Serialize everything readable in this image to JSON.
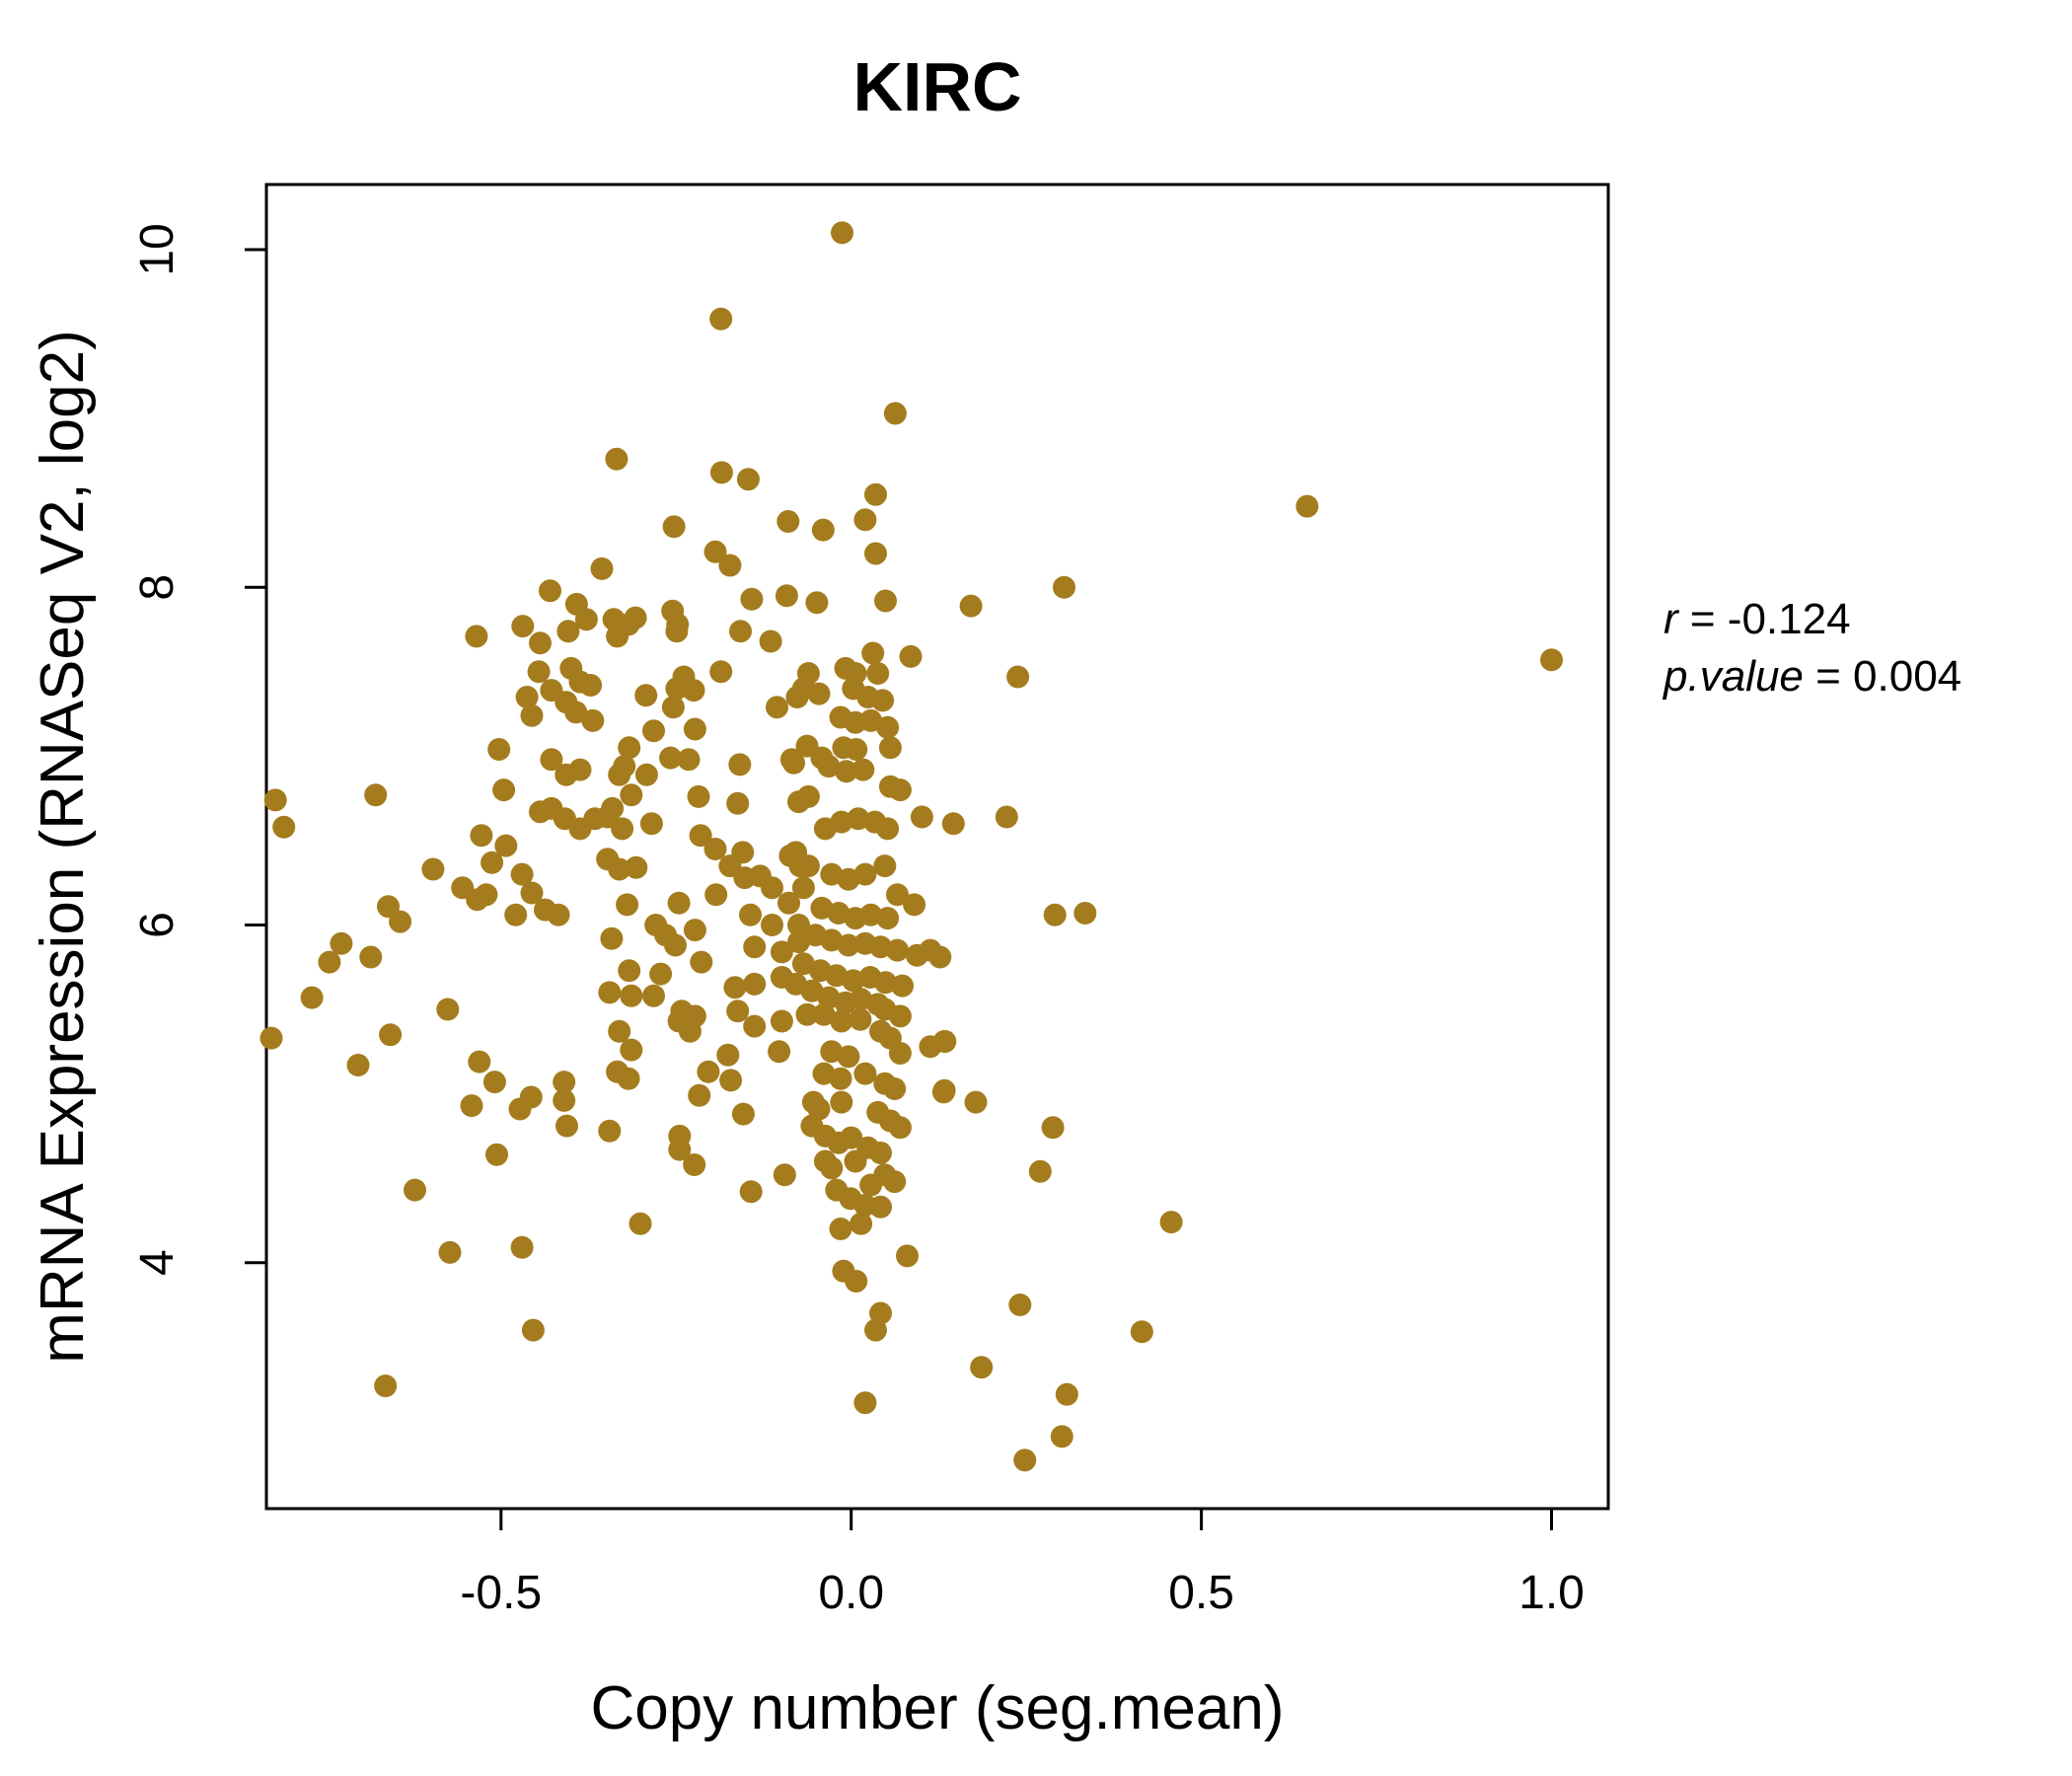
{
  "title": "KIRC",
  "annotation": {
    "line1_var": "r",
    "line1_rest": " = -0.124",
    "line2_var": "p.value",
    "line2_rest": " = 0.004"
  },
  "colors": {
    "point_gold": "#A47C1E",
    "title_gold": "#A47C1E",
    "axis_black": "#000000",
    "background": "#FFFFFF"
  },
  "chart_data": {
    "type": "scatter",
    "title": "KIRC",
    "xlabel": "Copy number (seg.mean)",
    "ylabel": "mRNA Expression (RNASeq V2, log2)",
    "xlim": [
      -0.835,
      1.081
    ],
    "ylim": [
      2.543,
      10.386
    ],
    "grid": false,
    "legend": "none",
    "correlation_r": -0.124,
    "p_value": 0.004,
    "x_ticks": [
      {
        "v": -0.5,
        "label": "-0.5"
      },
      {
        "v": 0.0,
        "label": "0.0"
      },
      {
        "v": 0.5,
        "label": "0.5"
      },
      {
        "v": 1.0,
        "label": "1.0"
      }
    ],
    "y_ticks": [
      {
        "v": 4,
        "label": "4"
      },
      {
        "v": 6,
        "label": "6"
      },
      {
        "v": 8,
        "label": "8"
      },
      {
        "v": 10,
        "label": "10"
      }
    ],
    "points": [
      [
        -0.013,
        10.1
      ],
      [
        -0.186,
        9.59
      ],
      [
        0.063,
        9.03
      ],
      [
        -0.335,
        8.76
      ],
      [
        -0.185,
        8.68
      ],
      [
        -0.147,
        8.64
      ],
      [
        -0.253,
        8.36
      ],
      [
        -0.09,
        8.39
      ],
      [
        -0.04,
        8.34
      ],
      [
        0.02,
        8.4
      ],
      [
        0.035,
        8.55
      ],
      [
        -0.194,
        8.21
      ],
      [
        -0.173,
        8.13
      ],
      [
        -0.356,
        8.11
      ],
      [
        -0.308,
        7.82
      ],
      [
        -0.142,
        7.93
      ],
      [
        -0.092,
        7.95
      ],
      [
        0.035,
        8.2
      ],
      [
        -0.43,
        7.98
      ],
      [
        -0.392,
        7.9
      ],
      [
        -0.378,
        7.81
      ],
      [
        -0.339,
        7.81
      ],
      [
        -0.318,
        7.78
      ],
      [
        -0.255,
        7.86
      ],
      [
        -0.248,
        7.78
      ],
      [
        -0.469,
        7.77
      ],
      [
        0.651,
        8.48
      ],
      [
        0.304,
        8.0
      ],
      [
        0.171,
        7.89
      ],
      [
        0.238,
        7.47
      ],
      [
        1.0,
        7.57
      ],
      [
        0.222,
        6.64
      ],
      [
        0.291,
        6.06
      ],
      [
        0.334,
        6.07
      ],
      [
        0.127,
        5.81
      ],
      [
        0.133,
        5.31
      ],
      [
        -0.049,
        7.91
      ],
      [
        0.049,
        7.92
      ],
      [
        0.031,
        7.61
      ],
      [
        0.085,
        7.59
      ],
      [
        -0.008,
        7.52
      ],
      [
        0.006,
        7.49
      ],
      [
        0.038,
        7.49
      ],
      [
        -0.061,
        7.49
      ],
      [
        -0.068,
        7.4
      ],
      [
        -0.046,
        7.37
      ],
      [
        -0.077,
        7.35
      ],
      [
        0.003,
        7.4
      ],
      [
        0.024,
        7.35
      ],
      [
        0.045,
        7.33
      ],
      [
        -0.015,
        7.23
      ],
      [
        0.006,
        7.2
      ],
      [
        0.028,
        7.21
      ],
      [
        0.052,
        7.17
      ],
      [
        -0.063,
        7.06
      ],
      [
        -0.042,
        6.99
      ],
      [
        -0.082,
        6.96
      ],
      [
        -0.011,
        7.05
      ],
      [
        0.007,
        7.04
      ],
      [
        0.056,
        7.05
      ],
      [
        -0.032,
        6.94
      ],
      [
        -0.007,
        6.91
      ],
      [
        0.017,
        6.92
      ],
      [
        0.056,
        6.82
      ],
      [
        0.07,
        6.8
      ],
      [
        0.101,
        6.64
      ],
      [
        0.146,
        6.6
      ],
      [
        -0.061,
        6.76
      ],
      [
        -0.075,
        6.73
      ],
      [
        -0.037,
        6.57
      ],
      [
        -0.014,
        6.61
      ],
      [
        0.01,
        6.63
      ],
      [
        0.034,
        6.61
      ],
      [
        0.052,
        6.57
      ],
      [
        -0.079,
        6.43
      ],
      [
        -0.061,
        6.35
      ],
      [
        -0.028,
        6.3
      ],
      [
        -0.004,
        6.27
      ],
      [
        0.02,
        6.3
      ],
      [
        0.048,
        6.35
      ],
      [
        0.066,
        6.18
      ],
      [
        0.09,
        6.12
      ],
      [
        -0.068,
        6.22
      ],
      [
        -0.042,
        6.1
      ],
      [
        -0.018,
        6.07
      ],
      [
        0.006,
        6.04
      ],
      [
        0.028,
        6.06
      ],
      [
        0.052,
        6.04
      ],
      [
        -0.075,
        6.0
      ],
      [
        -0.051,
        5.94
      ],
      [
        -0.028,
        5.91
      ],
      [
        -0.004,
        5.88
      ],
      [
        0.02,
        5.89
      ],
      [
        0.042,
        5.87
      ],
      [
        0.066,
        5.85
      ],
      [
        0.094,
        5.82
      ],
      [
        0.113,
        5.85
      ],
      [
        -0.068,
        5.77
      ],
      [
        -0.044,
        5.73
      ],
      [
        -0.021,
        5.7
      ],
      [
        0.003,
        5.67
      ],
      [
        0.027,
        5.69
      ],
      [
        0.049,
        5.66
      ],
      [
        0.073,
        5.64
      ],
      [
        -0.079,
        5.65
      ],
      [
        -0.056,
        5.61
      ],
      [
        -0.032,
        5.57
      ],
      [
        -0.008,
        5.54
      ],
      [
        0.014,
        5.56
      ],
      [
        0.038,
        5.53
      ],
      [
        -0.063,
        5.47
      ],
      [
        -0.039,
        5.47
      ],
      [
        -0.014,
        5.43
      ],
      [
        0.013,
        5.44
      ],
      [
        0.048,
        5.5
      ],
      [
        0.07,
        5.46
      ],
      [
        0.042,
        5.37
      ],
      [
        0.056,
        5.33
      ],
      [
        -0.028,
        5.25
      ],
      [
        -0.004,
        5.22
      ],
      [
        0.07,
        5.24
      ],
      [
        0.113,
        5.28
      ],
      [
        0.134,
        5.31
      ],
      [
        -0.039,
        5.12
      ],
      [
        -0.015,
        5.09
      ],
      [
        0.02,
        5.12
      ],
      [
        0.048,
        5.06
      ],
      [
        0.062,
        5.03
      ],
      [
        0.132,
        5.01
      ],
      [
        -0.054,
        4.95
      ],
      [
        -0.046,
        4.91
      ],
      [
        -0.014,
        4.95
      ],
      [
        0.038,
        4.89
      ],
      [
        0.056,
        4.84
      ],
      [
        0.07,
        4.8
      ],
      [
        -0.056,
        4.81
      ],
      [
        -0.037,
        4.75
      ],
      [
        -0.018,
        4.71
      ],
      [
        0.0,
        4.74
      ],
      [
        0.024,
        4.68
      ],
      [
        0.042,
        4.65
      ],
      [
        -0.037,
        4.6
      ],
      [
        -0.028,
        4.56
      ],
      [
        0.006,
        4.6
      ],
      [
        0.028,
        4.46
      ],
      [
        0.048,
        4.52
      ],
      [
        0.062,
        4.48
      ],
      [
        -0.021,
        4.43
      ],
      [
        -0.001,
        4.38
      ],
      [
        0.02,
        4.34
      ],
      [
        0.042,
        4.33
      ],
      [
        -0.015,
        4.2
      ],
      [
        0.014,
        4.23
      ],
      [
        0.08,
        4.04
      ],
      [
        -0.011,
        3.95
      ],
      [
        0.007,
        3.89
      ],
      [
        0.042,
        3.7
      ],
      [
        0.035,
        3.6
      ],
      [
        -0.535,
        7.71
      ],
      [
        -0.404,
        7.74
      ],
      [
        -0.444,
        7.67
      ],
      [
        -0.446,
        7.5
      ],
      [
        -0.4,
        7.52
      ],
      [
        -0.463,
        7.35
      ],
      [
        -0.428,
        7.39
      ],
      [
        -0.407,
        7.32
      ],
      [
        -0.387,
        7.44
      ],
      [
        -0.372,
        7.42
      ],
      [
        -0.456,
        7.24
      ],
      [
        -0.393,
        7.26
      ],
      [
        -0.369,
        7.21
      ],
      [
        -0.503,
        7.04
      ],
      [
        -0.496,
        6.8
      ],
      [
        -0.679,
        6.77
      ],
      [
        -0.428,
        6.98
      ],
      [
        -0.407,
        6.89
      ],
      [
        -0.387,
        6.92
      ],
      [
        -0.444,
        6.67
      ],
      [
        -0.428,
        6.69
      ],
      [
        -0.409,
        6.63
      ],
      [
        -0.387,
        6.57
      ],
      [
        -0.366,
        6.63
      ],
      [
        -0.528,
        6.53
      ],
      [
        -0.493,
        6.47
      ],
      [
        -0.513,
        6.37
      ],
      [
        -0.597,
        6.33
      ],
      [
        -0.555,
        6.22
      ],
      [
        -0.521,
        6.18
      ],
      [
        -0.534,
        6.15
      ],
      [
        -0.47,
        6.3
      ],
      [
        -0.456,
        6.19
      ],
      [
        -0.437,
        6.09
      ],
      [
        -0.418,
        6.06
      ],
      [
        -0.479,
        6.06
      ],
      [
        -0.661,
        6.11
      ],
      [
        -0.644,
        6.02
      ],
      [
        -0.728,
        5.89
      ],
      [
        -0.745,
        5.78
      ],
      [
        -0.686,
        5.81
      ],
      [
        -0.77,
        5.57
      ],
      [
        -0.576,
        5.5
      ],
      [
        -0.658,
        5.35
      ],
      [
        -0.704,
        5.17
      ],
      [
        -0.531,
        5.19
      ],
      [
        -0.334,
        7.71
      ],
      [
        -0.249,
        7.74
      ],
      [
        -0.158,
        7.74
      ],
      [
        -0.115,
        7.68
      ],
      [
        -0.186,
        7.5
      ],
      [
        -0.239,
        7.47
      ],
      [
        -0.249,
        7.4
      ],
      [
        -0.225,
        7.39
      ],
      [
        -0.293,
        7.36
      ],
      [
        -0.254,
        7.29
      ],
      [
        -0.282,
        7.15
      ],
      [
        -0.223,
        7.16
      ],
      [
        -0.106,
        7.29
      ],
      [
        -0.317,
        7.05
      ],
      [
        -0.324,
        6.94
      ],
      [
        -0.331,
        6.89
      ],
      [
        -0.292,
        6.89
      ],
      [
        -0.258,
        6.99
      ],
      [
        -0.232,
        6.98
      ],
      [
        -0.159,
        6.95
      ],
      [
        -0.085,
        6.98
      ],
      [
        -0.162,
        6.72
      ],
      [
        -0.218,
        6.76
      ],
      [
        -0.314,
        6.77
      ],
      [
        -0.341,
        6.69
      ],
      [
        -0.348,
        6.64
      ],
      [
        -0.327,
        6.57
      ],
      [
        -0.285,
        6.6
      ],
      [
        -0.215,
        6.53
      ],
      [
        -0.194,
        6.45
      ],
      [
        -0.155,
        6.43
      ],
      [
        -0.13,
        6.29
      ],
      [
        -0.152,
        6.28
      ],
      [
        -0.173,
        6.35
      ],
      [
        -0.087,
        6.41
      ],
      [
        -0.073,
        6.35
      ],
      [
        -0.348,
        6.39
      ],
      [
        -0.331,
        6.33
      ],
      [
        -0.307,
        6.34
      ],
      [
        -0.32,
        6.12
      ],
      [
        -0.246,
        6.13
      ],
      [
        -0.193,
        6.18
      ],
      [
        -0.113,
        6.22
      ],
      [
        -0.089,
        6.13
      ],
      [
        -0.144,
        6.06
      ],
      [
        -0.113,
        6.0
      ],
      [
        -0.279,
        6.0
      ],
      [
        -0.265,
        5.94
      ],
      [
        -0.251,
        5.88
      ],
      [
        -0.223,
        5.97
      ],
      [
        -0.214,
        5.78
      ],
      [
        -0.138,
        5.87
      ],
      [
        -0.099,
        5.84
      ],
      [
        -0.075,
        5.9
      ],
      [
        -0.342,
        5.92
      ],
      [
        -0.345,
        5.6
      ],
      [
        -0.317,
        5.73
      ],
      [
        -0.314,
        5.58
      ],
      [
        -0.272,
        5.71
      ],
      [
        -0.282,
        5.58
      ],
      [
        -0.242,
        5.49
      ],
      [
        -0.223,
        5.46
      ],
      [
        -0.166,
        5.63
      ],
      [
        -0.138,
        5.65
      ],
      [
        -0.099,
        5.69
      ],
      [
        -0.162,
        5.49
      ],
      [
        -0.138,
        5.4
      ],
      [
        -0.099,
        5.43
      ],
      [
        -0.331,
        5.37
      ],
      [
        -0.314,
        5.26
      ],
      [
        -0.23,
        5.37
      ],
      [
        -0.246,
        5.43
      ],
      [
        -0.176,
        5.23
      ],
      [
        -0.103,
        5.25
      ],
      [
        -0.334,
        5.13
      ],
      [
        -0.204,
        5.13
      ],
      [
        -0.542,
        4.93
      ],
      [
        -0.509,
        5.07
      ],
      [
        -0.473,
        4.91
      ],
      [
        -0.457,
        4.98
      ],
      [
        -0.41,
        4.96
      ],
      [
        -0.41,
        5.07
      ],
      [
        -0.406,
        4.81
      ],
      [
        -0.345,
        4.78
      ],
      [
        -0.318,
        5.09
      ],
      [
        -0.217,
        4.99
      ],
      [
        -0.245,
        4.75
      ],
      [
        -0.245,
        4.67
      ],
      [
        -0.224,
        4.58
      ],
      [
        -0.172,
        5.08
      ],
      [
        -0.154,
        4.88
      ],
      [
        -0.095,
        4.52
      ],
      [
        -0.143,
        4.42
      ],
      [
        -0.506,
        4.64
      ],
      [
        -0.623,
        4.43
      ],
      [
        -0.573,
        4.06
      ],
      [
        -0.47,
        4.09
      ],
      [
        -0.301,
        4.23
      ],
      [
        -0.454,
        3.6
      ],
      [
        -0.665,
        3.27
      ],
      [
        0.133,
        5.02
      ],
      [
        0.178,
        4.95
      ],
      [
        0.288,
        4.8
      ],
      [
        0.27,
        4.54
      ],
      [
        0.457,
        4.24
      ],
      [
        0.241,
        3.75
      ],
      [
        0.415,
        3.59
      ],
      [
        0.186,
        3.38
      ],
      [
        0.02,
        3.17
      ],
      [
        0.308,
        3.22
      ],
      [
        0.301,
        2.97
      ],
      [
        0.248,
        2.83
      ],
      [
        -0.822,
        6.74
      ],
      [
        -0.81,
        6.58
      ],
      [
        -0.828,
        5.33
      ]
    ]
  }
}
